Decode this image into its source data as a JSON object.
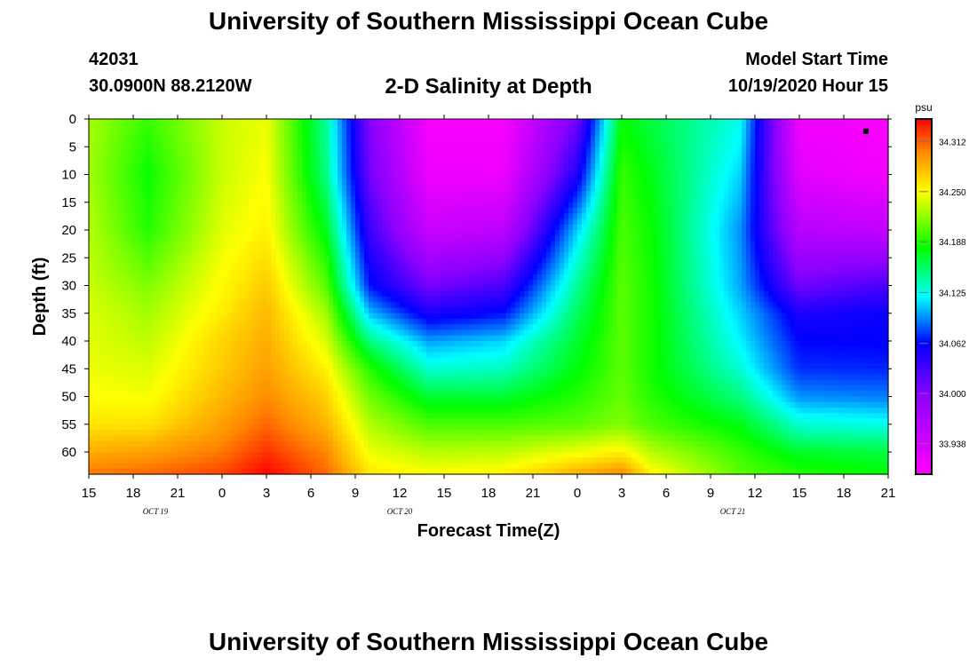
{
  "header": {
    "title": "University of Southern Mississippi Ocean Cube",
    "station_id": "42031",
    "station_location": "30.0900N 88.2120W",
    "plot_title": "2-D Salinity at Depth",
    "start_label": "Model Start Time",
    "start_time": "10/19/2020 Hour 15"
  },
  "footer": {
    "title": "University of Southern Mississippi Ocean Cube"
  },
  "chart_data": {
    "type": "heatmap",
    "title": "2-D Salinity at Depth",
    "xlabel": "Forecast Time(Z)",
    "ylabel": "Depth (ft)",
    "x_start_hour": 0,
    "x_end_hour": 54,
    "x_tick_step_hours": 3,
    "x_tick_labels": [
      "15",
      "18",
      "21",
      "0",
      "3",
      "6",
      "9",
      "12",
      "15",
      "18",
      "21",
      "0",
      "3",
      "6",
      "9",
      "12",
      "15",
      "18",
      "21"
    ],
    "date_labels": [
      {
        "text": "OCT 19",
        "hour": 4.5
      },
      {
        "text": "OCT 20",
        "hour": 21
      },
      {
        "text": "OCT 21",
        "hour": 43.5
      }
    ],
    "ylim": [
      0,
      64
    ],
    "y_ticks": [
      0,
      5,
      10,
      15,
      20,
      25,
      30,
      35,
      40,
      45,
      50,
      55,
      60
    ],
    "colorbar": {
      "unit": "psu",
      "min": 33.9,
      "max": 34.34,
      "tick_values": [
        34.312,
        34.25,
        34.188,
        34.125,
        34.062,
        34.0,
        33.938
      ],
      "tick_labels": [
        "34.312",
        "34.250",
        "34.188",
        "34.125",
        "34.062",
        "34.000",
        "33.938"
      ],
      "color_stops": [
        {
          "value": 33.9,
          "color": "#ff00ff"
        },
        {
          "value": 34.0,
          "color": "#8800ff"
        },
        {
          "value": 34.062,
          "color": "#0000ff"
        },
        {
          "value": 34.12,
          "color": "#00ffff"
        },
        {
          "value": 34.18,
          "color": "#00ff00"
        },
        {
          "value": 34.25,
          "color": "#ffff00"
        },
        {
          "value": 34.3,
          "color": "#ff8800"
        },
        {
          "value": 34.34,
          "color": "#ff0000"
        }
      ]
    },
    "grid_depths": [
      0,
      10,
      20,
      30,
      35,
      40,
      45,
      50,
      55,
      60,
      64
    ],
    "grid_hours": [
      0,
      4,
      9,
      12,
      16,
      19,
      23,
      28,
      33,
      36,
      38,
      44,
      48,
      54
    ],
    "salinity_grid": [
      [
        34.225,
        34.195,
        34.235,
        34.245,
        34.145,
        34.0,
        33.905,
        33.905,
        34.01,
        34.18,
        34.165,
        34.125,
        33.91,
        33.905
      ],
      [
        34.225,
        34.182,
        34.235,
        34.25,
        34.15,
        34.01,
        33.915,
        33.915,
        34.05,
        34.195,
        34.175,
        34.11,
        33.925,
        33.91
      ],
      [
        34.23,
        34.19,
        34.242,
        34.255,
        34.175,
        34.035,
        33.945,
        33.955,
        34.11,
        34.2,
        34.182,
        34.095,
        33.96,
        33.95
      ],
      [
        34.235,
        34.215,
        34.252,
        34.272,
        34.205,
        34.065,
        34.008,
        34.028,
        34.145,
        34.205,
        34.185,
        34.1,
        34.01,
        34.03
      ],
      [
        34.24,
        34.225,
        34.258,
        34.28,
        34.225,
        34.105,
        34.05,
        34.065,
        34.158,
        34.205,
        34.185,
        34.11,
        34.05,
        34.058
      ],
      [
        34.242,
        34.232,
        34.268,
        34.285,
        34.24,
        34.15,
        34.098,
        34.11,
        34.17,
        34.205,
        34.185,
        34.118,
        34.062,
        34.06
      ],
      [
        34.245,
        34.24,
        34.272,
        34.29,
        34.255,
        34.19,
        34.13,
        34.135,
        34.178,
        34.205,
        34.185,
        34.13,
        34.072,
        34.07
      ],
      [
        34.25,
        34.248,
        34.28,
        34.298,
        34.27,
        34.21,
        34.168,
        34.168,
        34.19,
        34.208,
        34.19,
        34.15,
        34.095,
        34.09
      ],
      [
        34.26,
        34.262,
        34.29,
        34.31,
        34.282,
        34.228,
        34.2,
        34.2,
        34.205,
        34.215,
        34.2,
        34.175,
        34.13,
        34.125
      ],
      [
        34.285,
        34.29,
        34.305,
        34.325,
        34.3,
        34.245,
        34.23,
        34.232,
        34.245,
        34.255,
        34.23,
        34.195,
        34.17,
        34.165
      ],
      [
        34.305,
        34.31,
        34.32,
        34.34,
        34.31,
        34.26,
        34.25,
        34.255,
        34.285,
        34.3,
        34.255,
        34.205,
        34.19,
        34.18
      ]
    ],
    "marker": {
      "hour": 52.5,
      "depth": 2.2
    }
  }
}
